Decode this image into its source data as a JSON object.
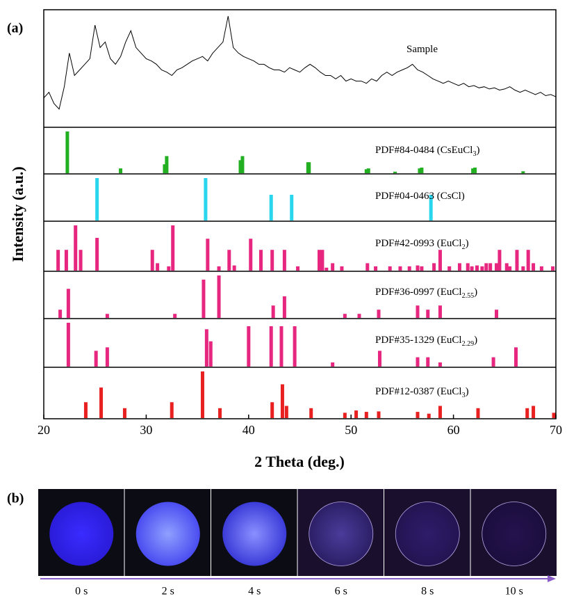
{
  "chart_data": {
    "type": "stacked",
    "panel_label": "(a)",
    "ylabel": "Intensity (a.u.)",
    "xlabel": "2 Theta (deg.)",
    "xlim": [
      20,
      70
    ],
    "xticks": [
      20,
      30,
      40,
      50,
      60,
      70
    ],
    "ylim": [
      0,
      100
    ],
    "panels": [
      {
        "type": "line",
        "label": {
          "text": "Sample"
        },
        "color": "#000000",
        "x": [
          20,
          20.5,
          21,
          21.5,
          22,
          22.5,
          23,
          23.5,
          24,
          24.5,
          25,
          25.5,
          26,
          26.5,
          27,
          27.5,
          28,
          28.5,
          29,
          29.5,
          30,
          30.5,
          31,
          31.5,
          32,
          32.5,
          33,
          33.5,
          34,
          34.5,
          35,
          35.5,
          36,
          36.5,
          37,
          37.5,
          38,
          38.5,
          39,
          39.5,
          40,
          40.5,
          41,
          41.5,
          42,
          42.5,
          43,
          43.5,
          44,
          44.5,
          45,
          45.5,
          46,
          46.5,
          47,
          47.5,
          48,
          48.5,
          49,
          49.5,
          50,
          50.5,
          51,
          51.5,
          52,
          52.5,
          53,
          53.5,
          54,
          54.5,
          55,
          55.5,
          56,
          56.5,
          57,
          57.5,
          58,
          58.5,
          59,
          59.5,
          60,
          60.5,
          61,
          61.5,
          62,
          62.5,
          63,
          63.5,
          64,
          64.5,
          65,
          65.5,
          66,
          66.5,
          67,
          67.5,
          68,
          68.5,
          69,
          69.5,
          70
        ],
        "values": [
          25,
          30,
          20,
          15,
          35,
          65,
          45,
          50,
          55,
          60,
          90,
          70,
          75,
          60,
          55,
          62,
          75,
          85,
          70,
          65,
          60,
          58,
          55,
          50,
          48,
          45,
          50,
          52,
          55,
          58,
          60,
          62,
          58,
          65,
          70,
          75,
          98,
          70,
          65,
          62,
          60,
          58,
          55,
          55,
          52,
          50,
          50,
          48,
          52,
          50,
          48,
          52,
          55,
          52,
          48,
          45,
          45,
          42,
          45,
          40,
          42,
          40,
          40,
          38,
          42,
          40,
          45,
          48,
          45,
          48,
          50,
          52,
          55,
          50,
          48,
          45,
          42,
          40,
          38,
          40,
          38,
          36,
          38,
          35,
          36,
          34,
          35,
          33,
          34,
          32,
          33,
          35,
          32,
          30,
          32,
          30,
          28,
          30,
          27,
          28,
          26
        ]
      },
      {
        "type": "stick",
        "label": {
          "text": "PDF#84-0484 (CsEuCl",
          "sub": "3",
          "suffix": ")"
        },
        "color": "#22b022",
        "x": [
          22.3,
          27.5,
          31.8,
          32,
          39.2,
          39.4,
          45.8,
          45.9,
          51.5,
          51.7,
          54.3,
          56.7,
          56.9,
          61.9,
          62.1,
          66.8
        ],
        "values": [
          100,
          10,
          20,
          40,
          30,
          40,
          25,
          25,
          8,
          10,
          2,
          10,
          12,
          10,
          12,
          3
        ]
      },
      {
        "type": "stick",
        "label": {
          "text": "PDF#04-0463 (CsCl)"
        },
        "color": "#29d6ee",
        "x": [
          25.2,
          35.8,
          42.2,
          44.2,
          57.8
        ],
        "values": [
          100,
          100,
          60,
          60,
          60
        ]
      },
      {
        "type": "stick",
        "label": {
          "text": "PDF#42-0993 (EuCl",
          "sub": "2",
          "suffix": ")"
        },
        "color": "#e6267f",
        "x": [
          21.4,
          22.2,
          23.1,
          23.6,
          25.2,
          30.6,
          31.1,
          32.2,
          32.6,
          36,
          37.1,
          38.1,
          38.6,
          40.2,
          41.2,
          42.3,
          43.5,
          44.8,
          46.9,
          47.2,
          47.6,
          48.2,
          49.1,
          51.6,
          52.4,
          53.8,
          54.8,
          55.7,
          56.5,
          56.9,
          58.1,
          58.7,
          59.6,
          60.6,
          61.4,
          61.8,
          62.3,
          62.8,
          63.2,
          63.6,
          64.2,
          64.5,
          65.2,
          65.5,
          66.2,
          66.8,
          67.3,
          67.8,
          68.6,
          69.7
        ],
        "values": [
          45,
          45,
          100,
          45,
          72,
          45,
          15,
          8,
          100,
          70,
          8,
          45,
          10,
          70,
          45,
          45,
          45,
          8,
          45,
          45,
          5,
          15,
          8,
          15,
          8,
          8,
          8,
          8,
          10,
          8,
          15,
          45,
          8,
          15,
          15,
          8,
          10,
          8,
          15,
          15,
          15,
          45,
          15,
          8,
          45,
          8,
          45,
          15,
          8,
          8
        ]
      },
      {
        "type": "stick",
        "label": {
          "text": "PDF#36-0997 (EuCl",
          "sub": "2.55",
          "suffix": ")"
        },
        "color": "#e6267f",
        "x": [
          21.6,
          22.4,
          26.2,
          32.8,
          35.6,
          37.1,
          42.4,
          43.5,
          49.4,
          50.8,
          52.7,
          56.5,
          57.5,
          58.7,
          64.2
        ],
        "values": [
          18,
          68,
          8,
          8,
          90,
          100,
          28,
          50,
          8,
          8,
          18,
          28,
          18,
          28,
          18
        ]
      },
      {
        "type": "stick",
        "label": {
          "text": "PDF#35-1329 (EuCl",
          "sub": "2.29",
          "suffix": ")"
        },
        "color": "#e6267f",
        "x": [
          22.4,
          25.1,
          26.2,
          35.9,
          36.3,
          40,
          42.2,
          43.2,
          44.5,
          48.2,
          52.8,
          56.5,
          57.5,
          58.7,
          63.9,
          66.1
        ],
        "values": [
          100,
          35,
          43,
          85,
          57,
          92,
          92,
          92,
          92,
          8,
          35,
          20,
          20,
          8,
          20,
          43
        ]
      },
      {
        "type": "stick",
        "label": {
          "text": "PDF#12-0387 (EuCl",
          "sub": "3",
          "suffix": ")"
        },
        "color": "#e82020",
        "x": [
          24.1,
          25.6,
          27.9,
          32.5,
          35.5,
          37.2,
          42.3,
          43.3,
          43.7,
          46.1,
          49.4,
          50.5,
          51.5,
          52.7,
          56.5,
          57.6,
          58.7,
          62.4,
          67.2,
          67.8,
          69.8
        ],
        "values": [
          33,
          65,
          20,
          33,
          100,
          20,
          33,
          72,
          25,
          20,
          10,
          15,
          12,
          13,
          12,
          8,
          25,
          20,
          20,
          25,
          10
        ]
      }
    ]
  },
  "photos": {
    "label": "(b)",
    "times": [
      "0 s",
      "2 s",
      "4 s",
      "6 s",
      "8 s",
      "10 s"
    ]
  }
}
